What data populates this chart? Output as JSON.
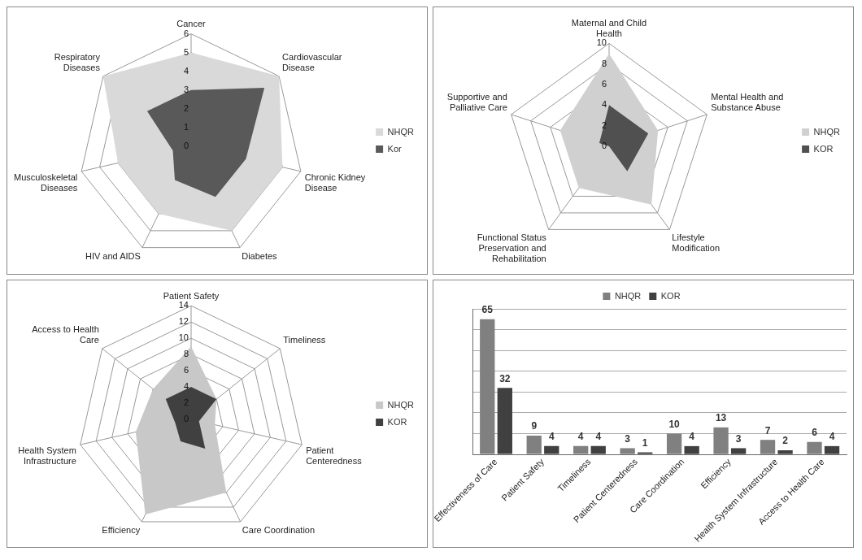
{
  "chart_data": [
    {
      "type": "radar",
      "categories": [
        "Cancer",
        "Cardiovascular Disease",
        "Chronic Kidney Disease",
        "Diabetes",
        "HIV and AIDS",
        "Musculoskeletal Diseases",
        "Respiratory Diseases"
      ],
      "series": [
        {
          "name": "NHQR",
          "color": "#d9d9d9",
          "values": [
            5,
            6,
            5,
            5,
            4,
            4,
            6
          ]
        },
        {
          "name": "Kor",
          "color": "#595959",
          "values": [
            3,
            5,
            3,
            3,
            2,
            1,
            3
          ]
        }
      ],
      "ylim": [
        0,
        6
      ],
      "yticks": [
        0,
        1,
        2,
        3,
        4,
        5,
        6
      ],
      "legend": "right"
    },
    {
      "type": "radar",
      "categories": [
        "Maternal and Child Health",
        "Mental Health and Substance Abuse",
        "Lifestyle Modification",
        "Functional Status Preservation and Rehabilitation",
        "Supportive and Palliative Care"
      ],
      "series": [
        {
          "name": "NHQR",
          "color": "#d0d0d0",
          "values": [
            9,
            5,
            7,
            5,
            5
          ]
        },
        {
          "name": "KOR",
          "color": "#505050",
          "values": [
            4,
            4,
            3,
            0,
            1
          ]
        }
      ],
      "ylim": [
        0,
        10
      ],
      "yticks": [
        0,
        2,
        4,
        6,
        8,
        10
      ],
      "legend": "right"
    },
    {
      "type": "radar",
      "categories": [
        "Patient Safety",
        "Timeliness",
        "Patient Centeredness",
        "Care Coordination",
        "Efficiency",
        "Health System Infrastructure",
        "Access to Health Care"
      ],
      "series": [
        {
          "name": "NHQR",
          "color": "#c8c8c8",
          "values": [
            9,
            4,
            3,
            10,
            13,
            7,
            6
          ]
        },
        {
          "name": "KOR",
          "color": "#404040",
          "values": [
            4,
            4,
            1,
            4,
            3,
            2,
            4
          ]
        }
      ],
      "ylim": [
        0,
        14
      ],
      "yticks": [
        0,
        2,
        4,
        6,
        8,
        10,
        12,
        14
      ],
      "legend": "right"
    },
    {
      "type": "bar",
      "categories": [
        "Effectiveness of Care",
        "Patient Safety",
        "Timeliness",
        "Patient Centeredness",
        "Care Coordination",
        "Efficiency",
        "Health System Infrastructure",
        "Access to Health Care"
      ],
      "series": [
        {
          "name": "NHQR",
          "color": "#808080",
          "values": [
            65,
            9,
            4,
            3,
            10,
            13,
            7,
            6
          ]
        },
        {
          "name": "KOR",
          "color": "#404040",
          "values": [
            32,
            4,
            4,
            1,
            4,
            3,
            2,
            4
          ]
        }
      ],
      "ylim": [
        0,
        70
      ],
      "yticks": [
        {
          "value": 0,
          "label": null
        },
        {
          "value": 10,
          "label": null
        },
        {
          "value": 20,
          "label": null
        },
        {
          "value": 30,
          "label": null
        },
        {
          "value": 40,
          "label": null
        },
        {
          "value": 50,
          "label": null
        },
        {
          "value": 60,
          "label": null
        },
        {
          "value": 70,
          "label": null
        }
      ],
      "grid": "y",
      "legend": "top",
      "data_labels": true
    }
  ]
}
